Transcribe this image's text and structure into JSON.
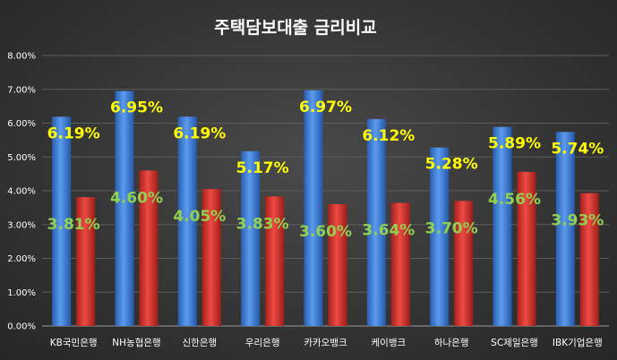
{
  "chart_data": {
    "type": "bar",
    "title": "주택담보대출 금리비교",
    "categories": [
      "KB국민은행",
      "NH농협은행",
      "신한은행",
      "우리은행",
      "카카오뱅크",
      "케이뱅크",
      "하나은행",
      "SC제일은행",
      "IBK기업은행"
    ],
    "series": [
      {
        "values": [
          6.19,
          6.95,
          6.19,
          5.17,
          6.97,
          6.12,
          5.28,
          5.89,
          5.74
        ],
        "labels": [
          "6.19%",
          "6.95%",
          "6.19%",
          "5.17%",
          "6.97%",
          "6.12%",
          "5.28%",
          "5.89%",
          "5.74%"
        ],
        "color": "#3f7fd6",
        "label_color": "#ffff00"
      },
      {
        "values": [
          3.81,
          4.6,
          4.05,
          3.83,
          3.6,
          3.64,
          3.7,
          4.56,
          3.93
        ],
        "labels": [
          "3.81%",
          "4.60%",
          "4.05%",
          "3.83%",
          "3.60%",
          "3.64%",
          "3.70%",
          "4.56%",
          "3.93%"
        ],
        "color": "#d9302c",
        "label_color": "#92d050"
      }
    ],
    "ylim": [
      0,
      8
    ],
    "yticks": [
      "0.00%",
      "1.00%",
      "2.00%",
      "3.00%",
      "4.00%",
      "5.00%",
      "6.00%",
      "7.00%",
      "8.00%"
    ],
    "grid": true,
    "background": "#3a3a3a"
  }
}
